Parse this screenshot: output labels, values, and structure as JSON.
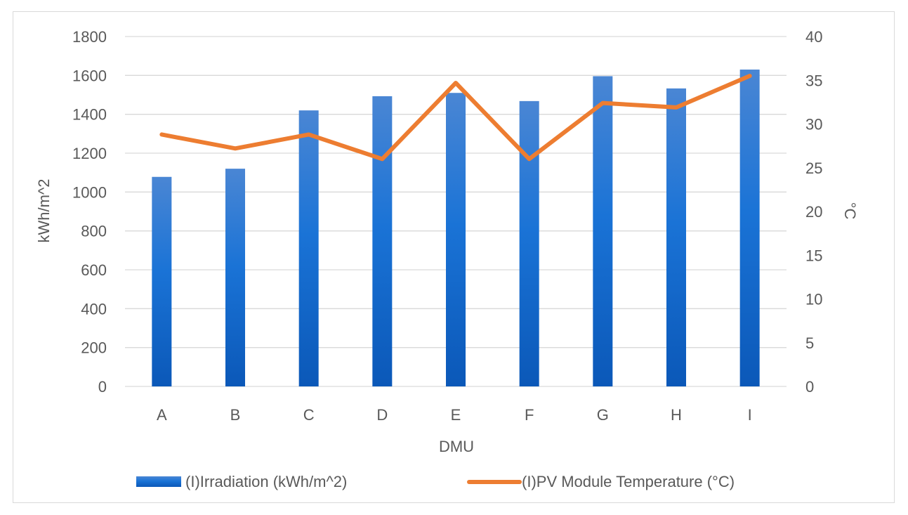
{
  "chart_data": {
    "type": "bar+line",
    "title": "",
    "xlabel": "DMU",
    "categories": [
      "A",
      "B",
      "C",
      "D",
      "E",
      "F",
      "G",
      "H",
      "I"
    ],
    "y_left": {
      "label": "kWh/m^2",
      "lim": [
        0,
        1800
      ],
      "ticks": [
        "0",
        "200",
        "400",
        "600",
        "800",
        "1000",
        "1200",
        "1400",
        "1600",
        "1800"
      ]
    },
    "y_right": {
      "label": "°C",
      "lim": [
        0,
        40
      ],
      "ticks": [
        "0",
        "5",
        "10",
        "15",
        "20",
        "25",
        "30",
        "35",
        "40"
      ]
    },
    "grid": true,
    "legend_position": "bottom",
    "series": [
      {
        "name": "(I)Irradiation (kWh/m^2)",
        "type": "bar",
        "axis": "left",
        "color": "#1f6fd1",
        "values": [
          1078,
          1120,
          1420,
          1493,
          1510,
          1468,
          1596,
          1533,
          1630
        ]
      },
      {
        "name": "(I)PV Module Temperature (°C)",
        "type": "line",
        "axis": "right",
        "color": "#ed7d31",
        "values": [
          28.8,
          27.2,
          28.8,
          26.0,
          34.7,
          26.0,
          32.4,
          31.9,
          35.5
        ]
      }
    ]
  }
}
